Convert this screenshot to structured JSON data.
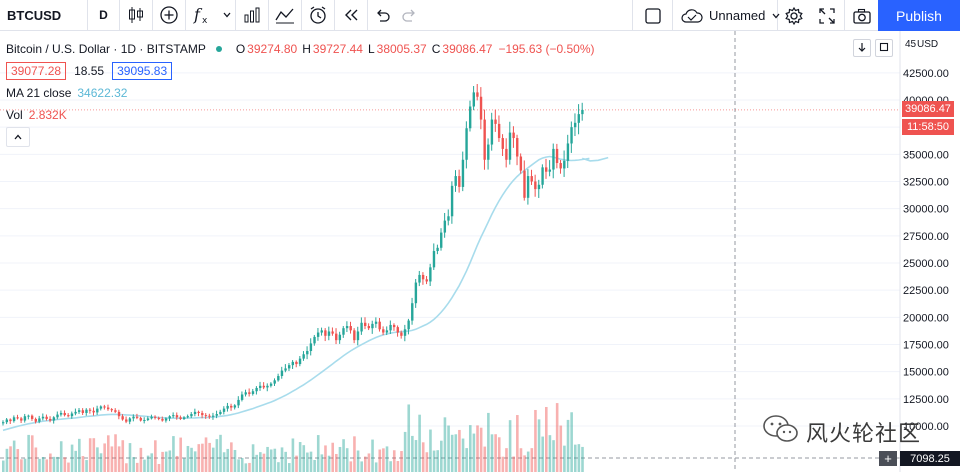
{
  "toolbar": {
    "symbol": "BTCUSD",
    "interval": "D",
    "layout_name": "Unnamed",
    "publish_label": "Publish",
    "icons": [
      "candles-icon",
      "add-indicator-icon",
      "indicators-fx-icon",
      "bar-chart-icon",
      "compare-icon",
      "alert-clock-icon",
      "replay-icon",
      "undo-icon",
      "redo-icon"
    ]
  },
  "legend": {
    "title": "Bitcoin / U.S. Dollar · 1D · BITSTAMP",
    "open_label": "O",
    "open": "39274.80",
    "high_label": "H",
    "high": "39727.44",
    "low_label": "L",
    "low": "38005.37",
    "close_label": "C",
    "close": "39086.47",
    "change": "−195.63 (−0.50%)",
    "bid": "39077.28",
    "spread": "18.55",
    "ask": "39095.83",
    "ma_label": "MA 21 close",
    "ma_value": "34622.32",
    "vol_label": "Vol",
    "vol_value": "2.832K"
  },
  "price_axis": {
    "currency": "USD",
    "top_partial": "45",
    "ticks": [
      "42500.00",
      "40000.00",
      "37500.00",
      "35000.00",
      "32500.00",
      "30000.00",
      "27500.00",
      "25000.00",
      "22500.00",
      "20000.00",
      "17500.00",
      "15000.00",
      "12500.00",
      "10000.00"
    ],
    "last_price": "39086.47",
    "countdown": "11:58:50",
    "crosshair_price": "7098.25"
  },
  "watermark": "风火轮社区",
  "colors": {
    "up": "#26a69a",
    "down": "#ef5350",
    "ma": "#a8dcec",
    "accent": "#2962ff"
  },
  "chart_data": {
    "type": "candlestick",
    "title": "Bitcoin / U.S. Dollar · 1D · BITSTAMP",
    "y_unit": "USD",
    "ylim": [
      7000,
      45000
    ],
    "close": [
      10350,
      10600,
      10450,
      10800,
      10700,
      10500,
      10900,
      10950,
      10650,
      10400,
      10700,
      10850,
      10650,
      10500,
      10800,
      11050,
      11200,
      11000,
      10900,
      11150,
      11300,
      11450,
      11200,
      11500,
      11400,
      11250,
      11600,
      11800,
      11700,
      11550,
      11450,
      11300,
      10900,
      10600,
      10400,
      10700,
      10850,
      10750,
      10500,
      10550,
      10700,
      10850,
      10750,
      10650,
      10500,
      10700,
      10900,
      11000,
      10800,
      10650,
      10800,
      10900,
      11100,
      11300,
      11200,
      11000,
      10950,
      10850,
      10950,
      11100,
      11300,
      11600,
      11850,
      11700,
      11900,
      12400,
      12900,
      13100,
      12950,
      13200,
      13500,
      13700,
      13550,
      13700,
      13900,
      14200,
      14600,
      15100,
      15300,
      15600,
      15900,
      15700,
      16200,
      16600,
      16900,
      17600,
      18200,
      18600,
      18800,
      18300,
      18700,
      18500,
      17900,
      18400,
      19000,
      19200,
      18800,
      17900,
      18700,
      19500,
      19200,
      19000,
      19400,
      19600,
      18900,
      18600,
      18800,
      19300,
      19100,
      18600,
      18300,
      18900,
      19700,
      21300,
      23200,
      23900,
      23500,
      23300,
      24600,
      26100,
      26400,
      27800,
      28900,
      29300,
      32100,
      33000,
      32000,
      34500,
      37400,
      39400,
      40700,
      40300,
      38200,
      34500,
      35900,
      38200,
      37800,
      36500,
      35500,
      34500,
      37000,
      36500,
      34800,
      33500,
      31000,
      33000,
      32500,
      31800,
      32200,
      33800,
      33400,
      33600,
      35500,
      34200,
      33700,
      34400,
      36000,
      37500,
      37900,
      38700,
      39086
    ],
    "ma21": [
      9600,
      9700,
      9790,
      9880,
      9970,
      10050,
      10130,
      10200,
      10260,
      10320,
      10380,
      10440,
      10480,
      10520,
      10560,
      10600,
      10630,
      10660,
      10690,
      10720,
      10750,
      10790,
      10830,
      10870,
      10900,
      10930,
      10960,
      11000,
      11030,
      11050,
      11070,
      11070,
      11060,
      11040,
      11020,
      11000,
      10980,
      10960,
      10930,
      10900,
      10870,
      10840,
      10810,
      10780,
      10760,
      10740,
      10730,
      10720,
      10720,
      10720,
      10720,
      10730,
      10740,
      10750,
      10760,
      10770,
      10780,
      10800,
      10820,
      10850,
      10890,
      10930,
      10980,
      11040,
      11110,
      11200,
      11300,
      11400,
      11500,
      11600,
      11720,
      11840,
      11960,
      12080,
      12200,
      12340,
      12490,
      12650,
      12820,
      13000,
      13190,
      13380,
      13580,
      13780,
      14000,
      14220,
      14460,
      14700,
      14950,
      15200,
      15450,
      15700,
      15950,
      16200,
      16450,
      16680,
      16900,
      17100,
      17300,
      17480,
      17660,
      17830,
      17990,
      18140,
      18270,
      18380,
      18470,
      18540,
      18600,
      18640,
      18680,
      18710,
      18730,
      18800,
      18900,
      19050,
      19200,
      19350,
      19550,
      19800,
      20100,
      20450,
      20850,
      21300,
      21800,
      22350,
      22900,
      23550,
      24250,
      25000,
      25800,
      26600,
      27350,
      28050,
      28750,
      29450,
      30100,
      30700,
      31250,
      31750,
      32200,
      32600,
      32950,
      33250,
      33500,
      33750,
      34000,
      34250,
      34500,
      34650,
      34750,
      34800,
      34750,
      34650,
      34550,
      34500,
      34450,
      34430,
      34450,
      34480,
      34520,
      34570,
      34622
    ],
    "volume_unit": "K",
    "last_volume": 2.832
  }
}
